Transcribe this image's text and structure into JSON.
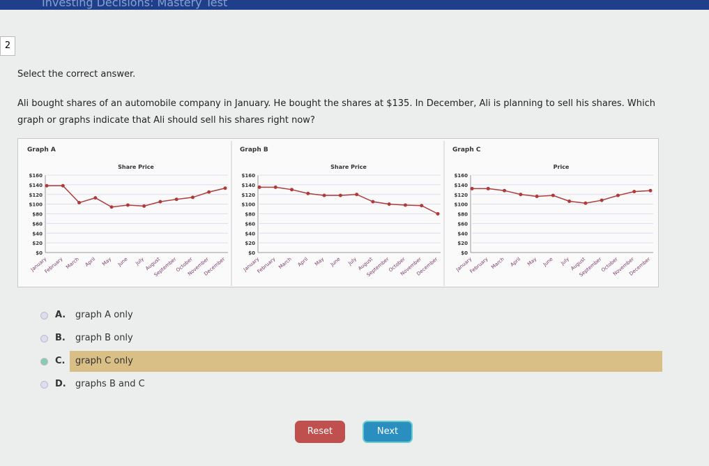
{
  "header": {
    "title": "Investing Decisions: Mastery Test"
  },
  "question": {
    "number": "2",
    "instruction": "Select the correct answer.",
    "text": "Ali bought shares of an automobile company in January. He bought the shares at $135. In December, Ali is planning to sell his shares. Which graph or graphs indicate that Ali should sell his shares right now?"
  },
  "chart_data": [
    {
      "type": "line",
      "heading": "Graph A",
      "title": "Share Price",
      "color": "#b03a3a",
      "grid": true,
      "categories": [
        "January",
        "February",
        "March",
        "April",
        "May",
        "June",
        "July",
        "August",
        "September",
        "October",
        "November",
        "December"
      ],
      "values": [
        138,
        138,
        103,
        113,
        94,
        98,
        96,
        105,
        110,
        114,
        125,
        133
      ],
      "ylim": [
        0,
        160
      ],
      "yticks": [
        {
          "value": 0,
          "label": "$0"
        },
        {
          "value": 20,
          "label": "$20"
        },
        {
          "value": 40,
          "label": "$40"
        },
        {
          "value": 60,
          "label": "$60"
        },
        {
          "value": 80,
          "label": "$80"
        },
        {
          "value": 100,
          "label": "$100"
        },
        {
          "value": 120,
          "label": "$120"
        },
        {
          "value": 140,
          "label": "$140"
        },
        {
          "value": 160,
          "label": "$160"
        }
      ]
    },
    {
      "type": "line",
      "heading": "Graph B",
      "title": "Share Price",
      "color": "#b03a3a",
      "grid": true,
      "categories": [
        "January",
        "February",
        "March",
        "April",
        "May",
        "June",
        "July",
        "August",
        "September",
        "October",
        "November",
        "December"
      ],
      "values": [
        135,
        135,
        130,
        122,
        118,
        118,
        120,
        105,
        100,
        98,
        97,
        80
      ],
      "ylim": [
        0,
        160
      ],
      "yticks": [
        {
          "value": 0,
          "label": "$0"
        },
        {
          "value": 20,
          "label": "$20"
        },
        {
          "value": 40,
          "label": "$40"
        },
        {
          "value": 60,
          "label": "$60"
        },
        {
          "value": 80,
          "label": "$80"
        },
        {
          "value": 100,
          "label": "$100"
        },
        {
          "value": 120,
          "label": "$120"
        },
        {
          "value": 140,
          "label": "$140"
        },
        {
          "value": 160,
          "label": "$160"
        }
      ]
    },
    {
      "type": "line",
      "heading": "Graph C",
      "title": "Price",
      "color": "#b03a3a",
      "grid": true,
      "categories": [
        "January",
        "February",
        "March",
        "April",
        "May",
        "June",
        "July",
        "August",
        "September",
        "October",
        "November",
        "December"
      ],
      "values": [
        132,
        132,
        128,
        120,
        116,
        118,
        106,
        102,
        108,
        118,
        126,
        128
      ],
      "ylim": [
        0,
        160
      ],
      "yticks": [
        {
          "value": 0,
          "label": "$0"
        },
        {
          "value": 20,
          "label": "$20"
        },
        {
          "value": 40,
          "label": "$40"
        },
        {
          "value": 60,
          "label": "$60"
        },
        {
          "value": 80,
          "label": "$80"
        },
        {
          "value": 100,
          "label": "$100"
        },
        {
          "value": 120,
          "label": "$120"
        },
        {
          "value": 140,
          "label": "$140"
        },
        {
          "value": 160,
          "label": "$160"
        }
      ]
    }
  ],
  "options": [
    {
      "letter": "A.",
      "text": "graph A only"
    },
    {
      "letter": "B.",
      "text": "graph B only"
    },
    {
      "letter": "C.",
      "text": "graph C only"
    },
    {
      "letter": "D.",
      "text": "graphs B and C"
    }
  ],
  "selected": "C.",
  "buttons": {
    "reset": "Reset",
    "next": "Next"
  }
}
